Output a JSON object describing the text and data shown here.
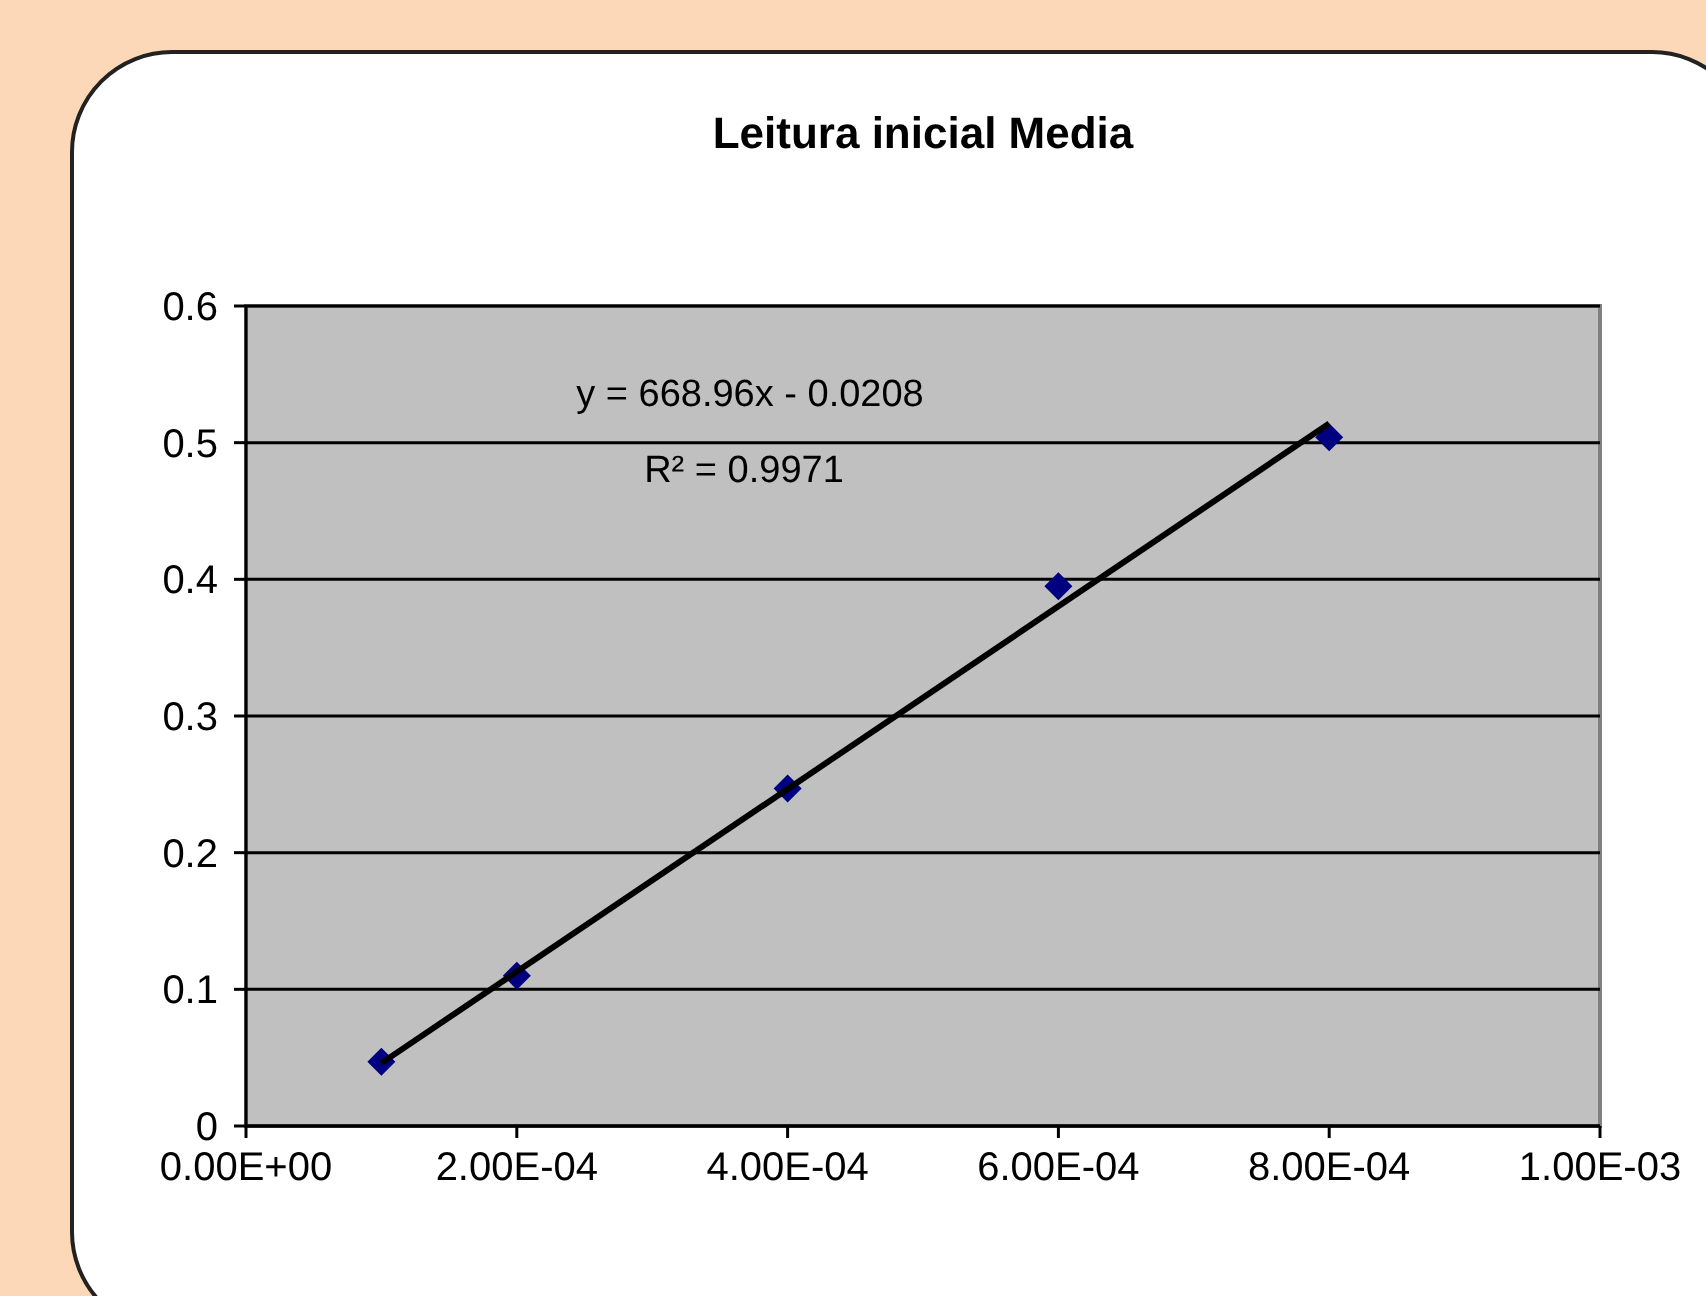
{
  "chart_data": {
    "type": "scatter",
    "title": "Leitura inicial Media",
    "x": [
      0.0001,
      0.0002,
      0.0004,
      0.0006,
      0.0008
    ],
    "series": [
      {
        "color": "#000080",
        "marker": "diamond",
        "values": [
          0.047,
          0.11,
          0.247,
          0.395,
          0.504
        ]
      },
      {
        "type": "line",
        "color": "#000000",
        "marker": "none",
        "x": [
          0.0001,
          0.0008
        ],
        "values": [
          0.046,
          0.514
        ]
      }
    ],
    "xlim": [
      0,
      0.001
    ],
    "xticks": [
      {
        "value": 0,
        "label": "0.00E+00"
      },
      {
        "value": 0.0002,
        "label": "2.00E-04"
      },
      {
        "value": 0.0004,
        "label": "4.00E-04"
      },
      {
        "value": 0.0006,
        "label": "6.00E-04"
      },
      {
        "value": 0.0008,
        "label": "8.00E-04"
      },
      {
        "value": 0.001,
        "label": "1.00E-03"
      }
    ],
    "ylim": [
      0,
      0.6
    ],
    "yticks": [
      0,
      0.1,
      0.2,
      0.3,
      0.4,
      0.5,
      0.6
    ],
    "grid": "y",
    "annotations": [
      "y = 668.96x - 0.0208",
      "R² = 0.9971"
    ]
  }
}
